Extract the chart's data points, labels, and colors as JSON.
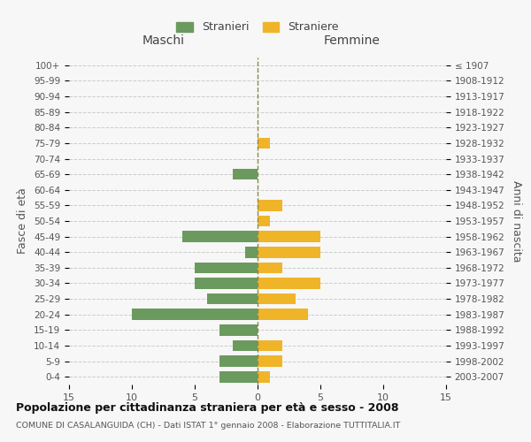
{
  "age_groups": [
    "100+",
    "95-99",
    "90-94",
    "85-89",
    "80-84",
    "75-79",
    "70-74",
    "65-69",
    "60-64",
    "55-59",
    "50-54",
    "45-49",
    "40-44",
    "35-39",
    "30-34",
    "25-29",
    "20-24",
    "15-19",
    "10-14",
    "5-9",
    "0-4"
  ],
  "birth_years": [
    "≤ 1907",
    "1908-1912",
    "1913-1917",
    "1918-1922",
    "1923-1927",
    "1928-1932",
    "1933-1937",
    "1938-1942",
    "1943-1947",
    "1948-1952",
    "1953-1957",
    "1958-1962",
    "1963-1967",
    "1968-1972",
    "1973-1977",
    "1978-1982",
    "1983-1987",
    "1988-1992",
    "1993-1997",
    "1998-2002",
    "2003-2007"
  ],
  "males": [
    0,
    0,
    0,
    0,
    0,
    0,
    0,
    2,
    0,
    0,
    0,
    6,
    1,
    5,
    5,
    4,
    10,
    3,
    2,
    3,
    3
  ],
  "females": [
    0,
    0,
    0,
    0,
    0,
    1,
    0,
    0,
    0,
    2,
    1,
    5,
    5,
    2,
    5,
    3,
    4,
    0,
    2,
    2,
    1
  ],
  "male_color": "#6b9a5e",
  "female_color": "#f0b429",
  "center_line_color": "#8a8a4a",
  "grid_color": "#cccccc",
  "bg_color": "#f7f7f7",
  "title": "Popolazione per cittadinanza straniera per età e sesso - 2008",
  "subtitle": "COMUNE DI CASALANGUIDA (CH) - Dati ISTAT 1° gennaio 2008 - Elaborazione TUTTITALIA.IT",
  "legend_stranieri": "Stranieri",
  "legend_straniere": "Straniere",
  "xlabel_left": "Maschi",
  "xlabel_right": "Femmine",
  "ylabel_left": "Fasce di età",
  "ylabel_right": "Anni di nascita",
  "xlim": 15
}
